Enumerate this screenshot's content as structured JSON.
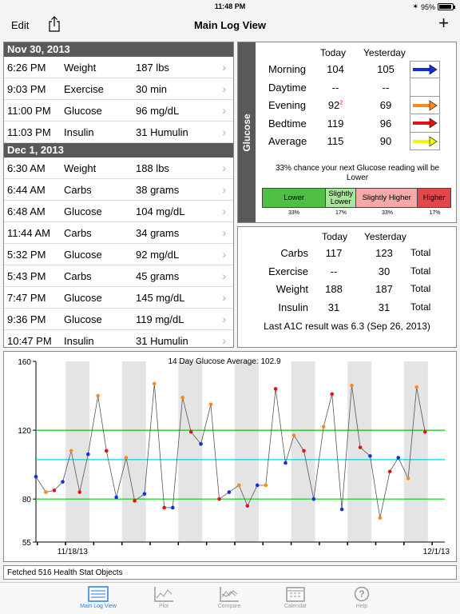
{
  "status": {
    "time": "11:48 PM",
    "battery": "95%"
  },
  "nav": {
    "edit": "Edit",
    "title": "Main Log View",
    "add": "+"
  },
  "log": {
    "days": [
      {
        "date": "Nov 30, 2013",
        "entries": [
          {
            "time": "6:26 PM",
            "type": "Weight",
            "value": "187 lbs"
          },
          {
            "time": "9:03 PM",
            "type": "Exercise",
            "value": "30 min"
          },
          {
            "time": "11:00 PM",
            "type": "Glucose",
            "value": "96 mg/dL"
          },
          {
            "time": "11:03 PM",
            "type": "Insulin",
            "value": "31 Humulin"
          }
        ]
      },
      {
        "date": "Dec 1, 2013",
        "entries": [
          {
            "time": "6:30 AM",
            "type": "Weight",
            "value": "188 lbs"
          },
          {
            "time": "6:44 AM",
            "type": "Carbs",
            "value": "38 grams"
          },
          {
            "time": "6:48 AM",
            "type": "Glucose",
            "value": "104 mg/dL"
          },
          {
            "time": "11:44 AM",
            "type": "Carbs",
            "value": "34 grams"
          },
          {
            "time": "5:32 PM",
            "type": "Glucose",
            "value": "92 mg/dL"
          },
          {
            "time": "5:43 PM",
            "type": "Carbs",
            "value": "45 grams"
          },
          {
            "time": "7:47 PM",
            "type": "Glucose",
            "value": "145 mg/dL"
          },
          {
            "time": "9:36 PM",
            "type": "Glucose",
            "value": "119 mg/dL"
          },
          {
            "time": "10:47 PM",
            "type": "Insulin",
            "value": "31 Humulin"
          }
        ]
      }
    ]
  },
  "glucose_panel": {
    "side_label": "Glucose",
    "col_today": "Today",
    "col_yesterday": "Yesterday",
    "rows": [
      {
        "label": "Morning",
        "today": "104",
        "yesterday": "105",
        "sup": "",
        "arrow_color": "#1030e0"
      },
      {
        "label": "Daytime",
        "today": "--",
        "yesterday": "--",
        "sup": "",
        "arrow_color": ""
      },
      {
        "label": "Evening",
        "today": "92",
        "yesterday": "69",
        "sup": "2",
        "arrow_color": "#ff8a1a"
      },
      {
        "label": "Bedtime",
        "today": "119",
        "yesterday": "96",
        "sup": "",
        "arrow_color": "#e81010"
      },
      {
        "label": "Average",
        "today": "115",
        "yesterday": "90",
        "sup": "",
        "arrow_color": "#f5f500"
      }
    ],
    "prediction_line1": "33% chance your next Glucose reading will be",
    "prediction_line2": "Lower",
    "buckets": [
      {
        "label": "Lower",
        "pct": "33%",
        "color": "#4fbf46"
      },
      {
        "label": "Slightly Lower",
        "pct": "17%",
        "color": "#a8e49c"
      },
      {
        "label": "Slightly Higher",
        "pct": "33%",
        "color": "#f3aaa8"
      },
      {
        "label": "Higher",
        "pct": "17%",
        "color": "#e3474a"
      }
    ]
  },
  "totals_panel": {
    "col_today": "Today",
    "col_yesterday": "Yesterday",
    "rows": [
      {
        "label": "Carbs",
        "today": "117",
        "yesterday": "123",
        "suffix": "Total"
      },
      {
        "label": "Exercise",
        "today": "--",
        "yesterday": "30",
        "suffix": "Total"
      },
      {
        "label": "Weight",
        "today": "188",
        "yesterday": "187",
        "suffix": "Total"
      },
      {
        "label": "Insulin",
        "today": "31",
        "yesterday": "31",
        "suffix": "Total"
      }
    ],
    "a1c": "Last A1C result was 6.3 (Sep 26, 2013)"
  },
  "chart_data": {
    "type": "line",
    "title": "14 Day Glucose Average: 102.9",
    "ylim": [
      55,
      160
    ],
    "yticks": [
      55,
      80,
      120,
      160
    ],
    "x_labels": [
      {
        "text": "11/18/13",
        "day": 1.3
      },
      {
        "text": "12/1/13",
        "day": 14.2
      }
    ],
    "xlim": [
      0,
      14.5
    ],
    "reference_lines": [
      {
        "value": 120,
        "color": "#00d000"
      },
      {
        "value": 80,
        "color": "#00d000"
      },
      {
        "value": 102.9,
        "color": "#00d8e0"
      }
    ],
    "shaded_days": [
      1,
      3,
      5,
      7,
      9,
      11,
      13
    ],
    "points": [
      {
        "x": 0.0,
        "y": 93,
        "c": "#1030e0"
      },
      {
        "x": 0.35,
        "y": 84,
        "c": "#ff8a1a"
      },
      {
        "x": 0.65,
        "y": 85,
        "c": "#e81010"
      },
      {
        "x": 0.95,
        "y": 90,
        "c": "#1030e0"
      },
      {
        "x": 1.25,
        "y": 108,
        "c": "#ff8a1a"
      },
      {
        "x": 1.55,
        "y": 84,
        "c": "#e81010"
      },
      {
        "x": 1.85,
        "y": 106,
        "c": "#1030e0"
      },
      {
        "x": 2.2,
        "y": 140,
        "c": "#ff8a1a"
      },
      {
        "x": 2.5,
        "y": 108,
        "c": "#e81010"
      },
      {
        "x": 2.85,
        "y": 81,
        "c": "#1030e0"
      },
      {
        "x": 3.2,
        "y": 104,
        "c": "#ff8a1a"
      },
      {
        "x": 3.5,
        "y": 79,
        "c": "#e81010"
      },
      {
        "x": 3.85,
        "y": 83,
        "c": "#1030e0"
      },
      {
        "x": 4.2,
        "y": 147,
        "c": "#ff8a1a"
      },
      {
        "x": 4.55,
        "y": 75,
        "c": "#e81010"
      },
      {
        "x": 4.85,
        "y": 75,
        "c": "#1030e0"
      },
      {
        "x": 5.2,
        "y": 139,
        "c": "#ff8a1a"
      },
      {
        "x": 5.5,
        "y": 119,
        "c": "#e81010"
      },
      {
        "x": 5.85,
        "y": 112,
        "c": "#1030e0"
      },
      {
        "x": 6.2,
        "y": 135,
        "c": "#ff8a1a"
      },
      {
        "x": 6.5,
        "y": 80,
        "c": "#e81010"
      },
      {
        "x": 6.85,
        "y": 84,
        "c": "#1030e0"
      },
      {
        "x": 7.2,
        "y": 88,
        "c": "#ff8a1a"
      },
      {
        "x": 7.5,
        "y": 76,
        "c": "#e81010"
      },
      {
        "x": 7.85,
        "y": 88,
        "c": "#1030e0"
      },
      {
        "x": 8.15,
        "y": 88,
        "c": "#ff8a1a"
      },
      {
        "x": 8.5,
        "y": 144,
        "c": "#e81010"
      },
      {
        "x": 8.85,
        "y": 101,
        "c": "#1030e0"
      },
      {
        "x": 9.15,
        "y": 117,
        "c": "#ff8a1a"
      },
      {
        "x": 9.5,
        "y": 108,
        "c": "#e81010"
      },
      {
        "x": 9.85,
        "y": 80,
        "c": "#1030e0"
      },
      {
        "x": 10.2,
        "y": 122,
        "c": "#ff8a1a"
      },
      {
        "x": 10.5,
        "y": 141,
        "c": "#e81010"
      },
      {
        "x": 10.85,
        "y": 74,
        "c": "#1030e0"
      },
      {
        "x": 11.2,
        "y": 146,
        "c": "#ff8a1a"
      },
      {
        "x": 11.5,
        "y": 110,
        "c": "#e81010"
      },
      {
        "x": 11.85,
        "y": 105,
        "c": "#1030e0"
      },
      {
        "x": 12.2,
        "y": 69,
        "c": "#ff8a1a"
      },
      {
        "x": 12.55,
        "y": 96,
        "c": "#e81010"
      },
      {
        "x": 12.85,
        "y": 104,
        "c": "#1030e0"
      },
      {
        "x": 13.2,
        "y": 92,
        "c": "#ff8a1a"
      },
      {
        "x": 13.5,
        "y": 145,
        "c": "#ff8a1a"
      },
      {
        "x": 13.8,
        "y": 119,
        "c": "#e81010"
      }
    ]
  },
  "footer": {
    "fetched": "Fetched 516 Health Stat Objects"
  },
  "tabs": [
    {
      "label": "Main Log View",
      "icon": "list-icon",
      "active": true
    },
    {
      "label": "Plot",
      "icon": "plot-icon",
      "active": false
    },
    {
      "label": "Compare",
      "icon": "compare-icon",
      "active": false
    },
    {
      "label": "Calendar",
      "icon": "calendar-icon",
      "active": false
    },
    {
      "label": "Help",
      "icon": "help-icon",
      "active": false
    }
  ]
}
